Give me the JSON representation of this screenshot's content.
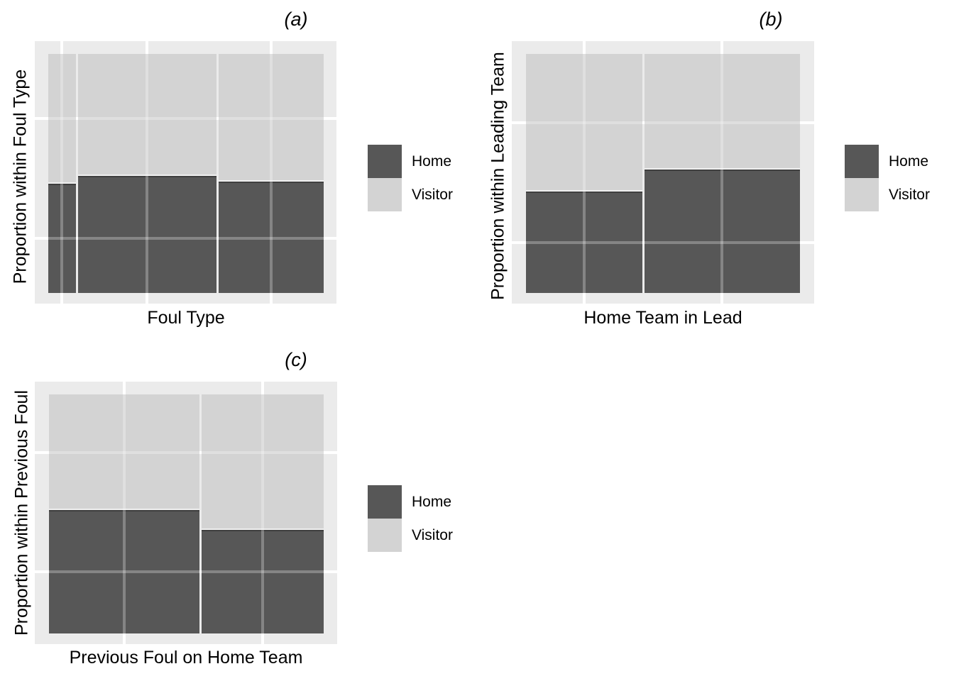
{
  "figure": {
    "background": "#FFFFFF",
    "legend": {
      "home_label": "Home",
      "visitor_label": "Visitor"
    },
    "panels": [
      {
        "tag": "(a)",
        "xlabel": "Foul Type",
        "ylabel": "Proportion within Foul Type"
      },
      {
        "tag": "(b)",
        "xlabel": "Home Team in Lead",
        "ylabel": "Proportion within Leading Team"
      },
      {
        "tag": "(c)",
        "xlabel": "Previous Foul on Home Team",
        "ylabel": "Proportion within Previous Foul"
      }
    ],
    "colors": {
      "home": "#575757",
      "visitor": "#D3D3D3",
      "panel_bg": "#EBEBEB",
      "grid": "#FFFFFF",
      "home_edge": "#3F3F3F",
      "split_gap": "#EFEFEF"
    }
  },
  "chart_data": [
    {
      "type": "mosaic",
      "title": "(a)",
      "xlabel": "Foul Type",
      "ylabel": "Proportion within Foul Type",
      "legend_entries": [
        "Home",
        "Visitor"
      ],
      "legend_position": "right",
      "x_tick_labels_shown": false,
      "y_tick_labels_shown": false,
      "y_range": [
        0,
        1
      ],
      "columns": [
        {
          "width_prop": 0.101,
          "home_prop": 0.457,
          "visitor_prop": 0.543
        },
        {
          "width_prop": 0.511,
          "home_prop": 0.489,
          "visitor_prop": 0.511
        },
        {
          "width_prop": 0.388,
          "home_prop": 0.466,
          "visitor_prop": 0.534
        }
      ]
    },
    {
      "type": "mosaic",
      "title": "(b)",
      "xlabel": "Home Team in Lead",
      "ylabel": "Proportion within Leading Team",
      "legend_entries": [
        "Home",
        "Visitor"
      ],
      "legend_position": "right",
      "x_tick_labels_shown": false,
      "y_tick_labels_shown": false,
      "y_range": [
        0,
        1
      ],
      "columns": [
        {
          "width_prop": 0.427,
          "home_prop": 0.424,
          "visitor_prop": 0.576
        },
        {
          "width_prop": 0.573,
          "home_prop": 0.516,
          "visitor_prop": 0.484
        }
      ]
    },
    {
      "type": "mosaic",
      "title": "(c)",
      "xlabel": "Previous Foul on Home Team",
      "ylabel": "Proportion within Previous Foul",
      "legend_entries": [
        "Home",
        "Visitor"
      ],
      "legend_position": "right",
      "x_tick_labels_shown": false,
      "y_tick_labels_shown": false,
      "y_range": [
        0,
        1
      ],
      "columns": [
        {
          "width_prop": 0.552,
          "home_prop": 0.516,
          "visitor_prop": 0.484
        },
        {
          "width_prop": 0.448,
          "home_prop": 0.433,
          "visitor_prop": 0.567
        }
      ]
    }
  ]
}
